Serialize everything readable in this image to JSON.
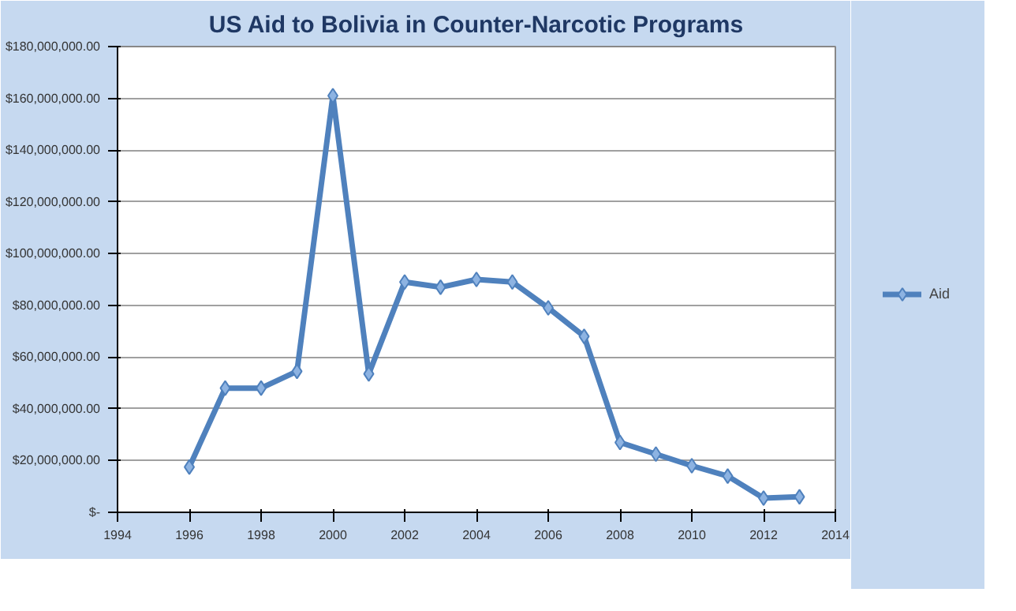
{
  "chart_data": {
    "type": "line",
    "title": "US Aid to Bolivia in Counter-Narcotic Programs",
    "x": [
      1996,
      1997,
      1998,
      1999,
      2000,
      2001,
      2002,
      2003,
      2004,
      2005,
      2006,
      2007,
      2008,
      2009,
      2010,
      2011,
      2012,
      2013
    ],
    "series": [
      {
        "name": "Aid",
        "color": "#4f81bd",
        "values": [
          17500000,
          48000000,
          48000000,
          54500000,
          161000000,
          53500000,
          89000000,
          87000000,
          90000000,
          89000000,
          79000000,
          68000000,
          27000000,
          22500000,
          18000000,
          14000000,
          5500000,
          6000000
        ]
      }
    ],
    "xlim": [
      1994,
      2014
    ],
    "xticks": [
      1994,
      1996,
      1998,
      2000,
      2002,
      2004,
      2006,
      2008,
      2010,
      2012,
      2014
    ],
    "ylim": [
      0,
      180000000
    ],
    "yticks": [
      {
        "value": 0,
        "label": "$-"
      },
      {
        "value": 20000000,
        "label": "$20,000,000.00"
      },
      {
        "value": 40000000,
        "label": "$40,000,000.00"
      },
      {
        "value": 60000000,
        "label": "$60,000,000.00"
      },
      {
        "value": 80000000,
        "label": "$80,000,000.00"
      },
      {
        "value": 100000000,
        "label": "$100,000,000.00"
      },
      {
        "value": 120000000,
        "label": "$120,000,000.00"
      },
      {
        "value": 140000000,
        "label": "$140,000,000.00"
      },
      {
        "value": 160000000,
        "label": "$160,000,000.00"
      },
      {
        "value": 180000000,
        "label": "$180,000,000.00"
      }
    ],
    "grid": "y",
    "legend": "right",
    "marker": "diamond",
    "line_style": "solid"
  }
}
